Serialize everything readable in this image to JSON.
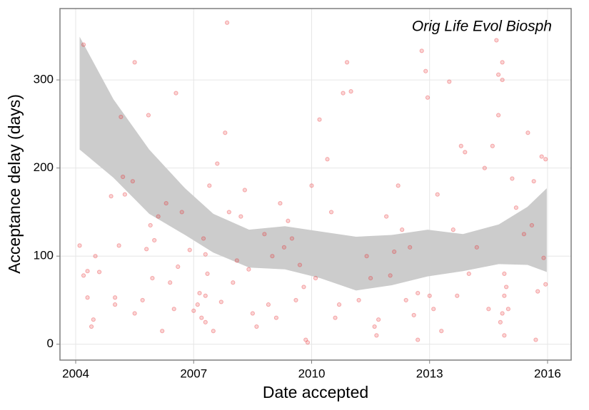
{
  "chart_data": {
    "type": "scatter",
    "annotation": "Orig Life Evol Biosph",
    "x_label": "Date accepted",
    "y_label": "Acceptance delay (days)",
    "xlim": [
      2003.6,
      2016.6
    ],
    "xticks": [
      2004,
      2007,
      2010,
      2013,
      2016
    ],
    "ylim": [
      -18,
      381
    ],
    "yticks": [
      0,
      100,
      200,
      300
    ],
    "grid": true,
    "points": {
      "color": "#e8262a",
      "x": [
        2004.1,
        2004.2,
        2004.3,
        2004.2,
        2004.3,
        2004.4,
        2004.45,
        2004.5,
        2004.6,
        2004.9,
        2005.0,
        2005.1,
        2005.15,
        2005.2,
        2005.25,
        2005.0,
        2005.5,
        2005.45,
        2005.5,
        2005.7,
        2005.85,
        2005.8,
        2005.9,
        2005.95,
        2006.0,
        2006.1,
        2006.2,
        2006.3,
        2006.4,
        2006.5,
        2006.55,
        2006.6,
        2006.7,
        2006.9,
        2007.0,
        2007.1,
        2007.15,
        2007.2,
        2007.25,
        2007.3,
        2007.3,
        2007.3,
        2007.35,
        2007.4,
        2007.5,
        2007.6,
        2007.7,
        2007.8,
        2007.85,
        2007.9,
        2008.0,
        2008.1,
        2008.2,
        2008.3,
        2008.4,
        2008.5,
        2008.6,
        2008.8,
        2008.9,
        2009.0,
        2009.1,
        2009.2,
        2009.3,
        2009.4,
        2009.5,
        2009.6,
        2009.7,
        2009.8,
        2009.85,
        2009.9,
        2010.0,
        2010.1,
        2010.2,
        2010.4,
        2010.5,
        2010.6,
        2010.7,
        2010.8,
        2010.9,
        2011.0,
        2011.2,
        2011.4,
        2011.5,
        2011.6,
        2011.65,
        2011.7,
        2011.9,
        2012.0,
        2012.1,
        2012.2,
        2012.3,
        2012.4,
        2012.5,
        2012.6,
        2012.7,
        2012.7,
        2012.8,
        2012.9,
        2012.95,
        2013.0,
        2013.1,
        2013.2,
        2013.3,
        2013.5,
        2013.6,
        2013.7,
        2013.8,
        2013.9,
        2014.0,
        2014.2,
        2014.4,
        2014.5,
        2014.6,
        2014.7,
        2014.75,
        2014.75,
        2014.8,
        2014.85,
        2014.85,
        2014.9,
        2014.9,
        2014.85,
        2014.9,
        2014.95,
        2015.0,
        2015.1,
        2015.2,
        2015.4,
        2015.5,
        2015.6,
        2015.65,
        2015.7,
        2015.75,
        2015.85,
        2015.9,
        2015.95,
        2015.95
      ],
      "y": [
        112,
        340,
        83,
        78,
        53,
        20,
        28,
        100,
        82,
        168,
        53,
        112,
        258,
        190,
        170,
        45,
        320,
        185,
        35,
        50,
        260,
        108,
        135,
        75,
        118,
        145,
        15,
        160,
        70,
        40,
        285,
        88,
        150,
        107,
        38,
        45,
        58,
        30,
        120,
        102,
        55,
        25,
        80,
        180,
        15,
        205,
        48,
        240,
        365,
        150,
        70,
        95,
        145,
        175,
        85,
        35,
        20,
        125,
        45,
        100,
        30,
        160,
        110,
        140,
        120,
        50,
        90,
        65,
        5,
        2,
        180,
        75,
        255,
        210,
        150,
        30,
        45,
        285,
        320,
        287,
        50,
        100,
        75,
        20,
        10,
        28,
        145,
        78,
        105,
        180,
        130,
        50,
        110,
        33,
        5,
        58,
        333,
        310,
        280,
        55,
        40,
        170,
        15,
        298,
        130,
        55,
        225,
        218,
        80,
        110,
        200,
        40,
        225,
        345,
        260,
        306,
        25,
        300,
        320,
        10,
        55,
        35,
        80,
        65,
        40,
        188,
        155,
        125,
        240,
        135,
        185,
        5,
        60,
        213,
        98,
        210,
        68
      ]
    },
    "band": {
      "color": "#cccccc",
      "x": [
        2004.1,
        2004.96,
        2005.87,
        2006.78,
        2007.5,
        2008.41,
        2009.32,
        2010.22,
        2011.13,
        2012.04,
        2012.95,
        2013.85,
        2014.76,
        2015.49,
        2015.98
      ],
      "upper": [
        349,
        278,
        221,
        177,
        148,
        130,
        134,
        128,
        122,
        124,
        130,
        125,
        136,
        156,
        177
      ],
      "lower": [
        221,
        189,
        148,
        124,
        104,
        87,
        85,
        75,
        61,
        67,
        77,
        83,
        91,
        90,
        82
      ]
    }
  }
}
